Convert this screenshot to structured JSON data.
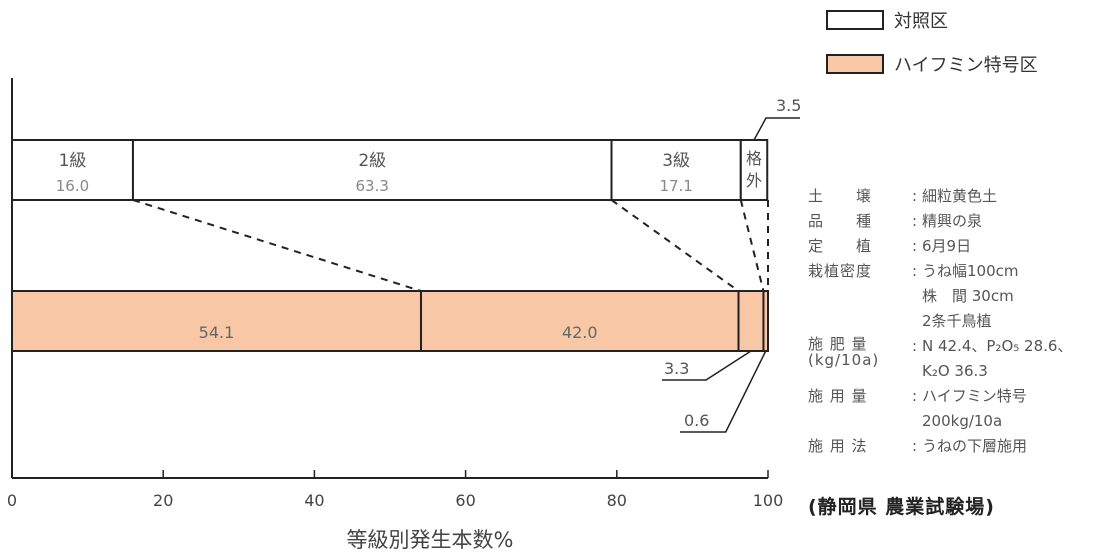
{
  "chart_data": {
    "type": "bar",
    "orientation": "horizontal",
    "stacked": true,
    "xlabel": "等級別発生本数%",
    "xlim": [
      0,
      100
    ],
    "x_ticks": [
      "0",
      "20",
      "40",
      "60",
      "80",
      "100"
    ],
    "legend": {
      "placement": "top-right",
      "entries": [
        {
          "label": "対照区",
          "color": "#ffffff"
        },
        {
          "label": "ハイフミン特号区",
          "color": "#f8c7a6"
        }
      ]
    },
    "series": [
      {
        "name": "対照区",
        "color": "#ffffff",
        "segments": [
          {
            "label": "1級",
            "value": 16.0,
            "value_text": "16.0"
          },
          {
            "label": "2級",
            "value": 63.3,
            "value_text": "63.3"
          },
          {
            "label": "3級",
            "value": 17.1,
            "value_text": "17.1"
          },
          {
            "label": "格外",
            "value": 3.5,
            "value_text": "3.5"
          }
        ]
      },
      {
        "name": "ハイフミン特号区",
        "color": "#f8c7a6",
        "segments": [
          {
            "label": "1級",
            "value": 54.1,
            "value_text": "54.1"
          },
          {
            "label": "2級",
            "value": 42.0,
            "value_text": "42.0"
          },
          {
            "label": "3級",
            "value": 3.3,
            "value_text": "3.3"
          },
          {
            "label": "格外",
            "value": 0.6,
            "value_text": "0.6"
          }
        ]
      }
    ]
  },
  "conditions": [
    {
      "key": "土　　壌",
      "value": "細粒黄色土"
    },
    {
      "key": "品　　種",
      "value": "精興の泉"
    },
    {
      "key": "定　　植",
      "value": "6月9日"
    },
    {
      "key": "栽植密度",
      "value": "うね幅100cm\n株　間 30cm\n2条千鳥植"
    },
    {
      "key": "施 肥 量\n(kg/10a)",
      "value": "N 42.4、P₂O₅ 28.6、\nK₂O 36.3"
    },
    {
      "key": "施 用 量",
      "value": "ハイフミン特号\n200kg/10a"
    },
    {
      "key": "施 用 法",
      "value": "うねの下層施用"
    }
  ],
  "source": "(静岡県 農業試験場)"
}
